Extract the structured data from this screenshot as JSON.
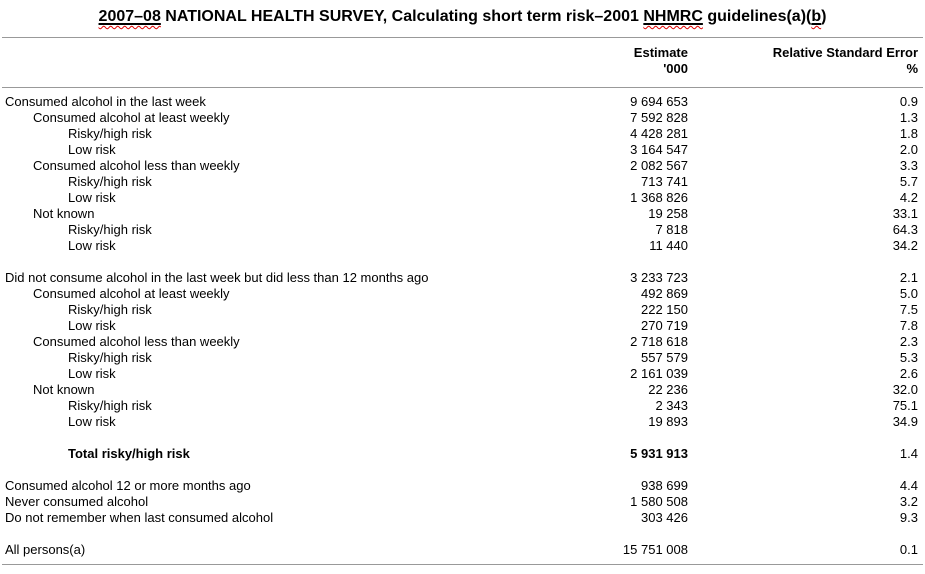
{
  "colors": {
    "text": "#000000",
    "rule": "#999999",
    "spellcheck": "#dd0000"
  },
  "title": {
    "segments": [
      {
        "text": "2007–08",
        "flagged": true
      },
      {
        "text": " NATIONAL HEALTH SURVEY, Calculating short term risk–2001 ",
        "flagged": false
      },
      {
        "text": "NHMRC",
        "flagged": true
      },
      {
        "text": " guidelines(a)(",
        "flagged": false
      },
      {
        "text": "b",
        "flagged": true
      },
      {
        "text": ")",
        "flagged": false
      }
    ]
  },
  "table": {
    "columns": [
      {
        "name": "estimate",
        "label_line1": "Estimate",
        "label_line2": "'000"
      },
      {
        "name": "rse",
        "label_line1": "Relative Standard Error",
        "label_line2": "%"
      }
    ],
    "rows": [
      {
        "label": "Consumed alcohol in the last week",
        "indent": 0,
        "estimate": "9 694 653",
        "rse": "0.9"
      },
      {
        "label": "Consumed alcohol at least weekly",
        "indent": 1,
        "estimate": "7 592 828",
        "rse": "1.3"
      },
      {
        "label": "Risky/high risk",
        "indent": 2,
        "estimate": "4 428 281",
        "rse": "1.8"
      },
      {
        "label": "Low risk",
        "indent": 2,
        "estimate": "3 164 547",
        "rse": "2.0"
      },
      {
        "label": "Consumed alcohol less than weekly",
        "indent": 1,
        "estimate": "2 082 567",
        "rse": "3.3"
      },
      {
        "label": "Risky/high risk",
        "indent": 2,
        "estimate": "713 741",
        "rse": "5.7"
      },
      {
        "label": "Low risk",
        "indent": 2,
        "estimate": "1 368 826",
        "rse": "4.2"
      },
      {
        "label": "Not known",
        "indent": 1,
        "estimate": "19 258",
        "rse": "33.1"
      },
      {
        "label": "Risky/high risk",
        "indent": 2,
        "estimate": "7 818",
        "rse": "64.3"
      },
      {
        "label": "Low risk",
        "indent": 2,
        "estimate": "11 440",
        "rse": "34.2"
      },
      {
        "spacer": true
      },
      {
        "label": "Did not consume alcohol in the last week but did less than 12 months ago",
        "indent": 0,
        "estimate": "3 233 723",
        "rse": "2.1"
      },
      {
        "label": "Consumed alcohol at least weekly",
        "indent": 1,
        "estimate": "492 869",
        "rse": "5.0"
      },
      {
        "label": "Risky/high risk",
        "indent": 2,
        "estimate": "222 150",
        "rse": "7.5"
      },
      {
        "label": "Low risk",
        "indent": 2,
        "estimate": "270 719",
        "rse": "7.8"
      },
      {
        "label": "Consumed alcohol less than weekly",
        "indent": 1,
        "estimate": "2 718 618",
        "rse": "2.3"
      },
      {
        "label": "Risky/high risk",
        "indent": 2,
        "estimate": "557 579",
        "rse": "5.3"
      },
      {
        "label": "Low risk",
        "indent": 2,
        "estimate": "2 161 039",
        "rse": "2.6"
      },
      {
        "label": "Not known",
        "indent": 1,
        "estimate": "22 236",
        "rse": "32.0"
      },
      {
        "label": "Risky/high risk",
        "indent": 2,
        "estimate": "2 343",
        "rse": "75.1"
      },
      {
        "label": "Low risk",
        "indent": 2,
        "estimate": "19 893",
        "rse": "34.9"
      },
      {
        "spacer": true
      },
      {
        "label": "Total risky/high risk",
        "indent": 2,
        "estimate": "5 931 913",
        "rse": "1.4",
        "bold": true
      },
      {
        "spacer": true
      },
      {
        "label": "Consumed alcohol 12 or more months ago",
        "indent": 0,
        "estimate": "938 699",
        "rse": "4.4"
      },
      {
        "label": "Never consumed alcohol",
        "indent": 0,
        "estimate": "1 580 508",
        "rse": "3.2"
      },
      {
        "label": "Do not remember when last consumed alcohol",
        "indent": 0,
        "estimate": "303 426",
        "rse": "9.3"
      },
      {
        "spacer": true
      },
      {
        "label": "All persons(a)",
        "indent": 0,
        "estimate": "15 751 008",
        "rse": "0.1"
      }
    ]
  }
}
